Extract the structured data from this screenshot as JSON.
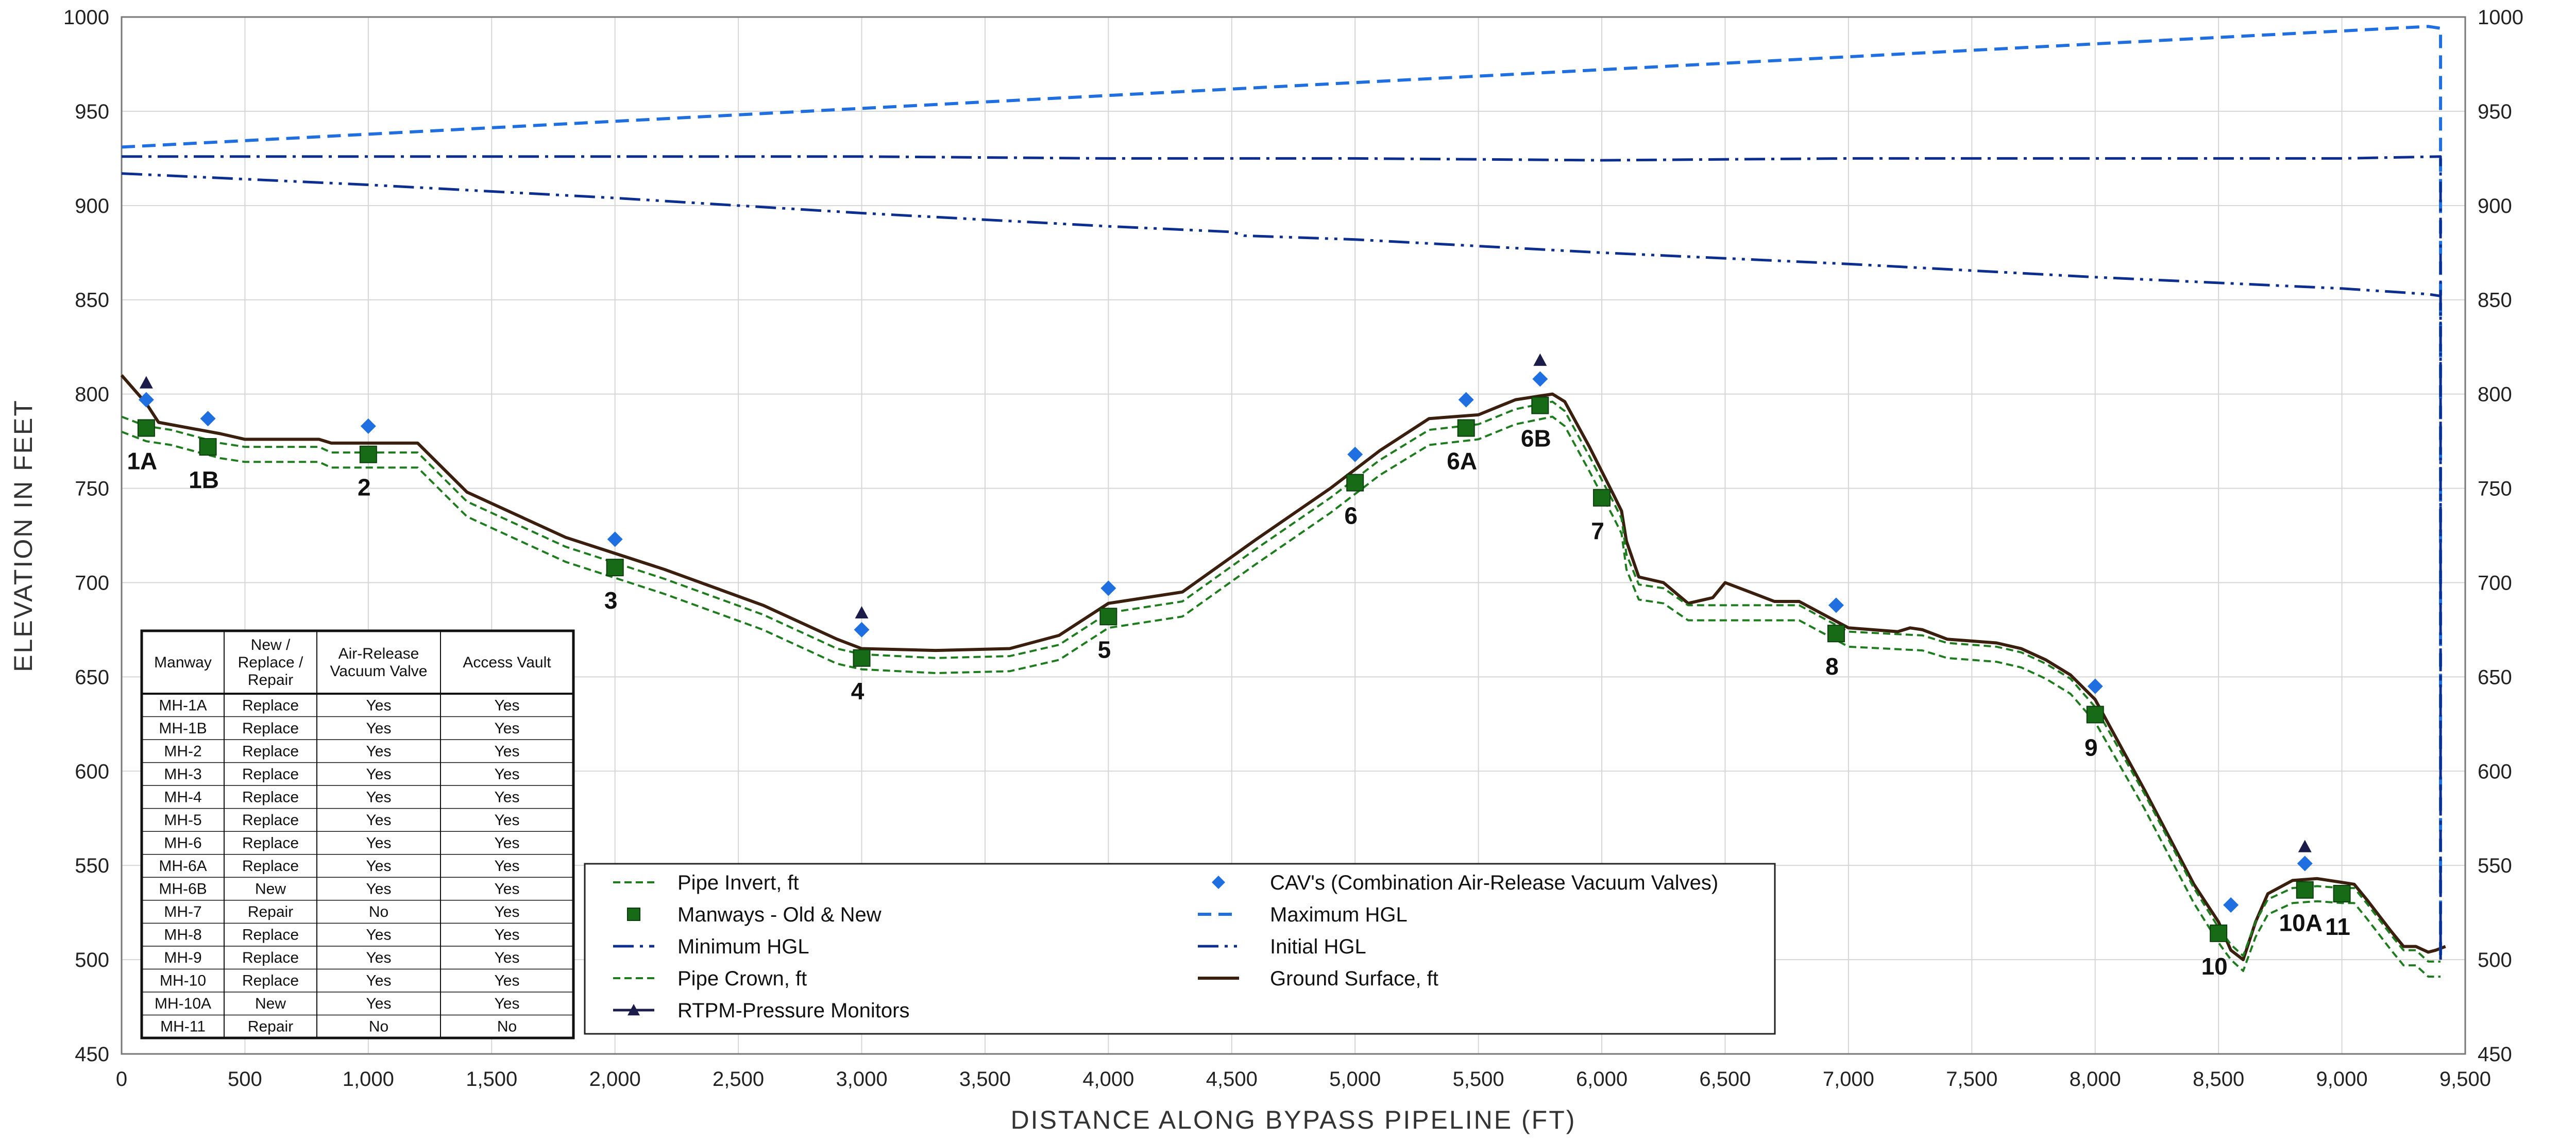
{
  "chart_data": {
    "type": "line",
    "xlabel": "DISTANCE ALONG BYPASS PIPELINE (FT)",
    "ylabel": "ELEVATION IN FEET",
    "ylabel_right": "ELEVATION IN FEET",
    "xlim": [
      0,
      9500
    ],
    "ylim": [
      450,
      1000
    ],
    "x_ticks": [
      0,
      500,
      1000,
      1500,
      2000,
      2500,
      3000,
      3500,
      4000,
      4500,
      5000,
      5500,
      6000,
      6500,
      7000,
      7500,
      8000,
      8500,
      9000,
      9500
    ],
    "x_tick_labels": [
      "0",
      "500",
      "1,000",
      "1,500",
      "2,000",
      "2,500",
      "3,000",
      "3,500",
      "4,000",
      "4,500",
      "5,000",
      "5,500",
      "6,000",
      "6,500",
      "7,000",
      "7,500",
      "8,000",
      "8,500",
      "9,000",
      "9,500"
    ],
    "y_ticks": [
      450,
      500,
      550,
      600,
      650,
      700,
      750,
      800,
      850,
      900,
      950,
      1000
    ],
    "y_tick_labels": [
      "450",
      "500",
      "550",
      "600",
      "650",
      "700",
      "750",
      "800",
      "850",
      "900",
      "950",
      "1000"
    ],
    "grid": true,
    "colors": {
      "pipe": "#1e7b1e",
      "manway": "#176b17",
      "cav": "#1f6fe0",
      "max_hgl": "#1f6fe0",
      "min_hgl": "#0b2e8f",
      "initial_hgl": "#0b2e8f",
      "ground": "#3b1f0e",
      "rtpm": "#1c1c4a"
    },
    "series": [
      {
        "name": "Ground Surface, ft",
        "key": "ground",
        "style": "solid",
        "x": [
          0,
          100,
          150,
          400,
          500,
          800,
          850,
          1200,
          1400,
          1800,
          2200,
          2600,
          2900,
          3000,
          3300,
          3600,
          3800,
          4000,
          4300,
          4600,
          4900,
          5100,
          5300,
          5500,
          5650,
          5800,
          5850,
          5950,
          6050,
          6080,
          6100,
          6150,
          6250,
          6350,
          6450,
          6500,
          6600,
          6700,
          6800,
          6900,
          7000,
          7200,
          7250,
          7300,
          7400,
          7600,
          7700,
          7800,
          7900,
          8000,
          8200,
          8400,
          8500,
          8550,
          8600,
          8650,
          8700,
          8800,
          8900,
          9000,
          9050,
          9100,
          9200,
          9250,
          9300,
          9350,
          9380,
          9420
        ],
        "y": [
          810,
          795,
          785,
          779,
          776,
          776,
          774,
          774,
          748,
          724,
          707,
          688,
          670,
          665,
          664,
          665,
          672,
          689,
          695,
          723,
          750,
          770,
          787,
          789,
          797,
          800,
          796,
          772,
          746,
          738,
          722,
          703,
          700,
          689,
          692,
          700,
          695,
          690,
          690,
          683,
          676,
          674,
          676,
          675,
          670,
          668,
          665,
          659,
          651,
          638,
          590,
          540,
          520,
          505,
          500,
          520,
          535,
          542,
          543,
          541,
          540,
          532,
          515,
          507,
          507,
          504,
          505,
          507
        ]
      },
      {
        "name": "Pipe Crown, ft",
        "key": "pipe_crown",
        "style": "dashed",
        "x": [
          0,
          100,
          200,
          400,
          500,
          800,
          850,
          1200,
          1400,
          1800,
          2200,
          2600,
          2900,
          3000,
          3300,
          3600,
          3800,
          4000,
          4300,
          4600,
          4900,
          5100,
          5300,
          5500,
          5650,
          5800,
          5850,
          5950,
          6050,
          6080,
          6100,
          6150,
          6250,
          6350,
          6500,
          6600,
          6700,
          6800,
          6900,
          7000,
          7300,
          7400,
          7600,
          7700,
          7800,
          7900,
          8000,
          8200,
          8400,
          8500,
          8550,
          8600,
          8650,
          8700,
          8800,
          8900,
          9000,
          9050,
          9100,
          9200,
          9250,
          9300,
          9350,
          9400
        ],
        "y": [
          788,
          783,
          781,
          774,
          772,
          772,
          769,
          769,
          743,
          719,
          702,
          683,
          665,
          662,
          660,
          661,
          667,
          684,
          690,
          718,
          745,
          765,
          781,
          784,
          792,
          796,
          791,
          767,
          742,
          734,
          715,
          699,
          697,
          688,
          688,
          688,
          688,
          688,
          681,
          674,
          672,
          668,
          666,
          663,
          657,
          649,
          634,
          588,
          538,
          517,
          508,
          502,
          520,
          532,
          538,
          539,
          538,
          538,
          530,
          513,
          505,
          505,
          499,
          499
        ]
      },
      {
        "name": "Pipe Invert, ft",
        "key": "pipe_invert",
        "style": "dashed",
        "x": [
          0,
          100,
          200,
          400,
          500,
          800,
          850,
          1200,
          1400,
          1800,
          2200,
          2600,
          2900,
          3000,
          3300,
          3600,
          3800,
          4000,
          4300,
          4600,
          4900,
          5100,
          5300,
          5500,
          5650,
          5800,
          5850,
          5950,
          6050,
          6080,
          6100,
          6150,
          6250,
          6350,
          6500,
          6600,
          6700,
          6800,
          6900,
          7000,
          7300,
          7400,
          7600,
          7700,
          7800,
          7900,
          8000,
          8200,
          8400,
          8500,
          8550,
          8600,
          8650,
          8700,
          8800,
          8900,
          9000,
          9050,
          9100,
          9200,
          9250,
          9300,
          9350,
          9400
        ],
        "y": [
          780,
          775,
          773,
          766,
          764,
          764,
          761,
          761,
          735,
          711,
          694,
          675,
          657,
          654,
          652,
          653,
          659,
          676,
          682,
          710,
          737,
          757,
          773,
          776,
          784,
          788,
          783,
          759,
          734,
          726,
          707,
          691,
          689,
          680,
          680,
          680,
          680,
          680,
          673,
          666,
          664,
          660,
          658,
          655,
          649,
          641,
          626,
          580,
          530,
          509,
          500,
          494,
          512,
          524,
          530,
          531,
          530,
          530,
          522,
          505,
          497,
          497,
          491,
          491
        ]
      },
      {
        "name": "Maximum HGL",
        "key": "max_hgl",
        "style": "dashed",
        "x": [
          0,
          9350,
          9400,
          9400
        ],
        "y": [
          931,
          995,
          994,
          500
        ]
      },
      {
        "name": "Minimum HGL",
        "key": "min_hgl",
        "style": "dashdot",
        "x": [
          0,
          1000,
          2000,
          3000,
          4000,
          5000,
          6000,
          7000,
          8000,
          9000,
          9400,
          9400
        ],
        "y": [
          926,
          926,
          926,
          926,
          925,
          925,
          924,
          925,
          925,
          925,
          926,
          500
        ]
      },
      {
        "name": "Initial HGL",
        "key": "initial_hgl",
        "style": "dashdotdot",
        "x": [
          0,
          1000,
          2000,
          3000,
          4000,
          4500,
          4550,
          5000,
          6000,
          7000,
          8000,
          9000,
          9350,
          9400,
          9400
        ],
        "y": [
          917,
          911,
          904,
          896,
          889,
          886,
          884,
          882,
          875,
          869,
          862,
          856,
          853,
          852,
          500
        ]
      }
    ],
    "manways": [
      {
        "label": "1A",
        "x": 100,
        "y": 782
      },
      {
        "label": "1B",
        "x": 350,
        "y": 772
      },
      {
        "label": "2",
        "x": 1000,
        "y": 768
      },
      {
        "label": "3",
        "x": 2000,
        "y": 708
      },
      {
        "label": "4",
        "x": 3000,
        "y": 660
      },
      {
        "label": "5",
        "x": 4000,
        "y": 682
      },
      {
        "label": "6",
        "x": 5000,
        "y": 753
      },
      {
        "label": "6A",
        "x": 5450,
        "y": 782
      },
      {
        "label": "6B",
        "x": 5750,
        "y": 794
      },
      {
        "label": "7",
        "x": 6000,
        "y": 745
      },
      {
        "label": "8",
        "x": 6950,
        "y": 673
      },
      {
        "label": "9",
        "x": 8000,
        "y": 630
      },
      {
        "label": "10",
        "x": 8500,
        "y": 514
      },
      {
        "label": "10A",
        "x": 8850,
        "y": 537
      },
      {
        "label": "11",
        "x": 9000,
        "y": 535
      }
    ],
    "cav_points": [
      {
        "x": 100,
        "y": 797
      },
      {
        "x": 350,
        "y": 787
      },
      {
        "x": 1000,
        "y": 783
      },
      {
        "x": 2000,
        "y": 723
      },
      {
        "x": 3000,
        "y": 675
      },
      {
        "x": 4000,
        "y": 697
      },
      {
        "x": 5000,
        "y": 768
      },
      {
        "x": 5450,
        "y": 797
      },
      {
        "x": 5750,
        "y": 808
      },
      {
        "x": 6950,
        "y": 688
      },
      {
        "x": 8000,
        "y": 645
      },
      {
        "x": 8550,
        "y": 529
      },
      {
        "x": 8850,
        "y": 551
      }
    ],
    "rtpm_points": [
      {
        "x": 100,
        "y": 806
      },
      {
        "x": 3000,
        "y": 684
      },
      {
        "x": 5750,
        "y": 818
      },
      {
        "x": 8850,
        "y": 560
      }
    ],
    "legend": {
      "placement": "bottom-center",
      "items": [
        {
          "label": "Pipe Invert, ft",
          "key": "pipe_invert"
        },
        {
          "label": "Manways - Old & New",
          "key": "manway"
        },
        {
          "label": "Minimum HGL",
          "key": "min_hgl"
        },
        {
          "label": "Pipe Crown, ft",
          "key": "pipe_crown"
        },
        {
          "label": "RTPM-Pressure Monitors",
          "key": "rtpm"
        },
        {
          "label": "CAV's (Combination Air-Release Vacuum Valves)",
          "key": "cav"
        },
        {
          "label": "Maximum HGL",
          "key": "max_hgl"
        },
        {
          "label": "Initial HGL",
          "key": "initial_hgl"
        },
        {
          "label": "Ground Surface, ft",
          "key": "ground"
        }
      ]
    },
    "table": {
      "placement": "bottom-left",
      "headers": [
        [
          "Manway"
        ],
        [
          "New /",
          "Replace /",
          "Repair"
        ],
        [
          "Air-Release",
          "Vacuum Valve"
        ],
        [
          "Access Vault"
        ]
      ],
      "rows": [
        [
          "MH-1A",
          "Replace",
          "Yes",
          "Yes"
        ],
        [
          "MH-1B",
          "Replace",
          "Yes",
          "Yes"
        ],
        [
          "MH-2",
          "Replace",
          "Yes",
          "Yes"
        ],
        [
          "MH-3",
          "Replace",
          "Yes",
          "Yes"
        ],
        [
          "MH-4",
          "Replace",
          "Yes",
          "Yes"
        ],
        [
          "MH-5",
          "Replace",
          "Yes",
          "Yes"
        ],
        [
          "MH-6",
          "Replace",
          "Yes",
          "Yes"
        ],
        [
          "MH-6A",
          "Replace",
          "Yes",
          "Yes"
        ],
        [
          "MH-6B",
          "New",
          "Yes",
          "Yes"
        ],
        [
          "MH-7",
          "Repair",
          "No",
          "Yes"
        ],
        [
          "MH-8",
          "Replace",
          "Yes",
          "Yes"
        ],
        [
          "MH-9",
          "Replace",
          "Yes",
          "Yes"
        ],
        [
          "MH-10",
          "Replace",
          "Yes",
          "Yes"
        ],
        [
          "MH-10A",
          "New",
          "Yes",
          "Yes"
        ],
        [
          "MH-11",
          "Repair",
          "No",
          "No"
        ]
      ]
    }
  }
}
